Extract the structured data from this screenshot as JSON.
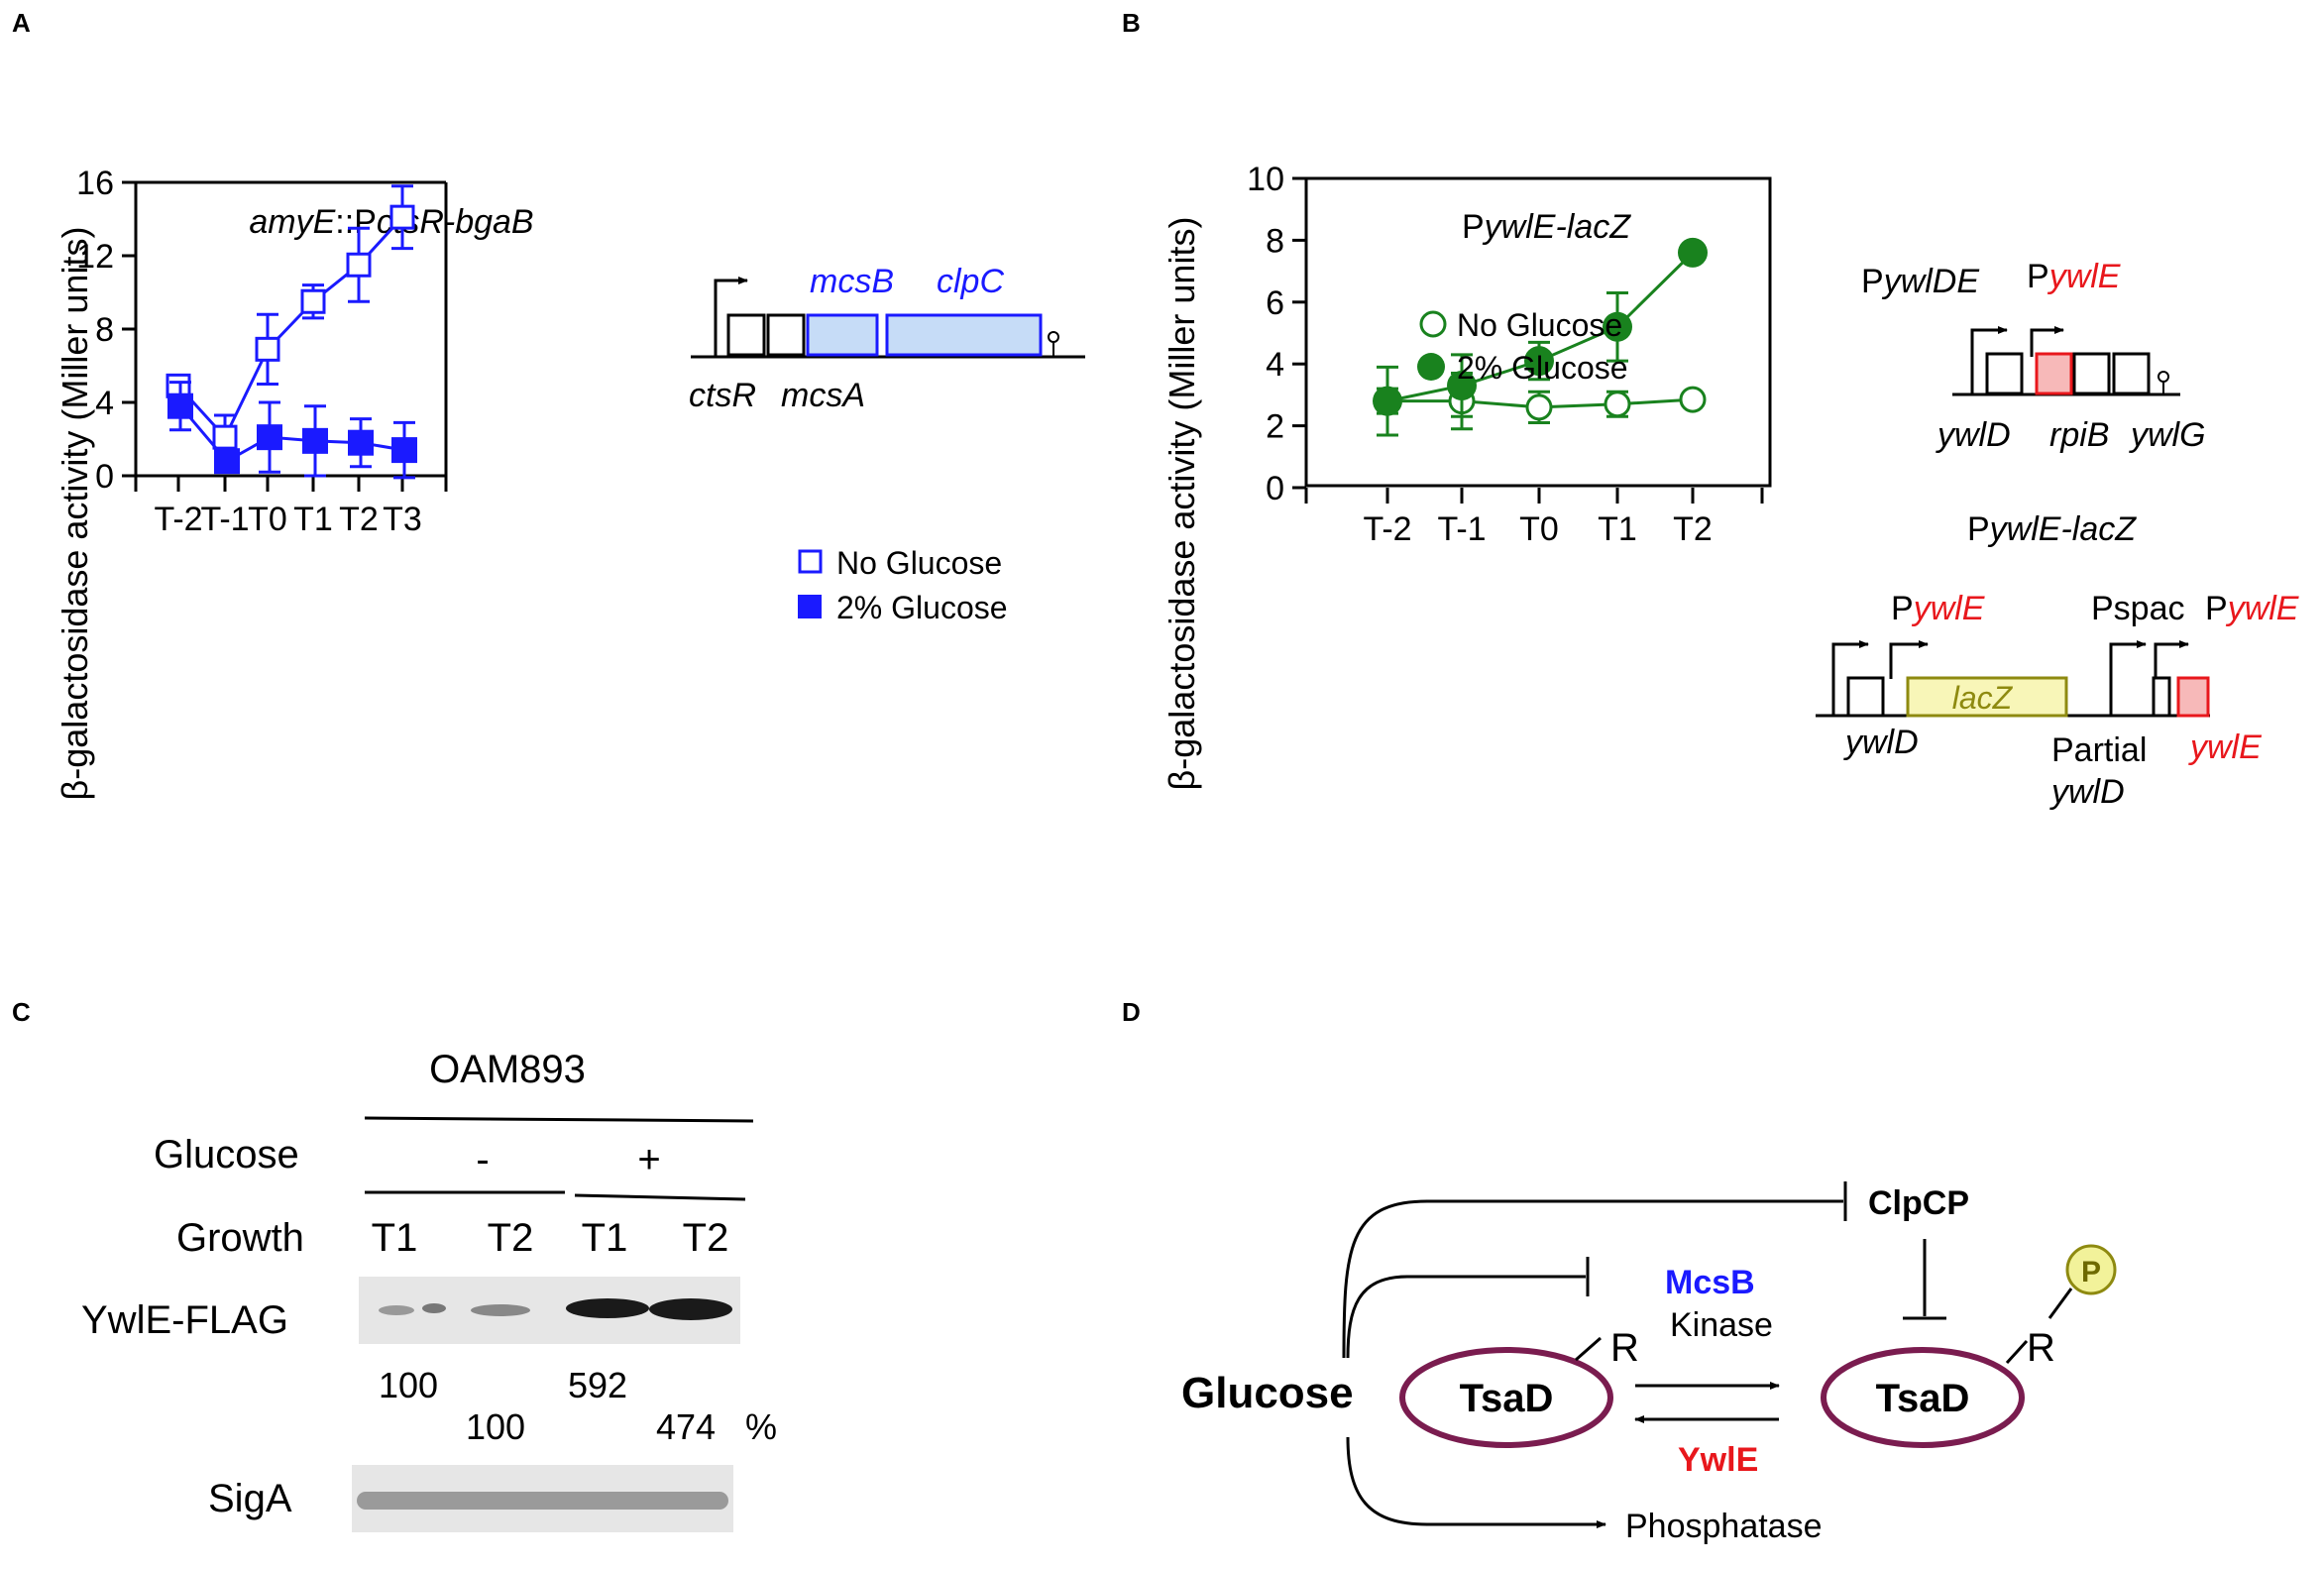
{
  "colors": {
    "blue": "#1a1aff",
    "blue_fill": "#c6dcf7",
    "green": "#19821e",
    "red": "#e8171c",
    "red_fill": "#f7b9b9",
    "olive": "#8e8a10",
    "lacz_fill": "#f8f6b8",
    "purple": "#7a1c4f",
    "p_fill": "#f2f29a",
    "black": "#000000"
  },
  "panels": {
    "A": "A",
    "B": "B",
    "C": "C",
    "D": "D"
  },
  "chart_data": [
    {
      "panel": "A",
      "type": "line",
      "title_italic": "amyE",
      "title_rest": "::P",
      "title_italic2": "ctsR-bgaB",
      "ylabel": "β-galactosidase activity (Miller units)",
      "xlabel": "",
      "categories": [
        "T-2",
        "T-1",
        "T0",
        "T1",
        "T2",
        "T3"
      ],
      "ylim": [
        0,
        16
      ],
      "yticks": [
        0,
        4,
        8,
        12,
        16
      ],
      "series": [
        {
          "name": "No Glucose",
          "marker": "open-square",
          "values": [
            4.9,
            2.1,
            6.9,
            9.5,
            11.5,
            14.1
          ],
          "errors": [
            0.3,
            1.2,
            1.9,
            0.9,
            2.0,
            1.7
          ]
        },
        {
          "name": "2% Glucose",
          "marker": "filled-square",
          "values": [
            3.8,
            0.8,
            2.1,
            1.9,
            1.8,
            1.4
          ],
          "errors": [
            1.3,
            0.5,
            1.9,
            1.9,
            1.3,
            1.5
          ]
        }
      ],
      "legend": [
        "No Glucose",
        "2% Glucose"
      ]
    },
    {
      "panel": "B",
      "type": "line",
      "title_prefix": "P",
      "title_italic": "ywlE-lacZ",
      "ylabel": "β-galactosidase activity (Miller units)",
      "xlabel": "",
      "categories": [
        "T-2",
        "T-1",
        "T0",
        "T1",
        "T2"
      ],
      "ylim": [
        0,
        10
      ],
      "yticks": [
        0,
        2,
        4,
        6,
        8,
        10
      ],
      "series": [
        {
          "name": "No Glucose",
          "marker": "open-circle",
          "values": [
            2.8,
            2.8,
            2.6,
            2.7,
            2.85
          ],
          "errors": [
            0.4,
            0.9,
            0.5,
            0.4,
            0
          ]
        },
        {
          "name": "2% Glucose",
          "marker": "filled-circle",
          "values": [
            2.8,
            3.3,
            4.1,
            5.2,
            7.6
          ],
          "errors": [
            1.1,
            1.0,
            0.6,
            1.1,
            0
          ]
        }
      ],
      "legend": [
        "No Glucose",
        "2% Glucose"
      ]
    }
  ],
  "operonA": {
    "gene1": "mcsB",
    "gene2": "clpC",
    "label1": "ctsR",
    "label2": "mcsA"
  },
  "operonB": {
    "p1_prefix": "P",
    "p1_italic": "ywlDE",
    "p2_prefix": "P",
    "p2_italic": "ywlE",
    "g1": "ywlD",
    "g2": "rpiB",
    "g3": "ywlG",
    "construct_prefix": "P",
    "construct_italic": "ywlE-lacZ",
    "cp1_prefix": "P",
    "cp1_italic": "ywlE",
    "pspac": "Pspac",
    "cp3_prefix": "P",
    "cp3_italic": "ywlE",
    "lacz": "lacZ",
    "cg1": "ywlD",
    "partial1": "Partial",
    "partial2": "ywlD",
    "cg3": "ywlE"
  },
  "western": {
    "strain": "OAM893",
    "glucose_label": "Glucose",
    "minus": "-",
    "plus": "+",
    "growth_label": "Growth",
    "lanes": [
      "T1",
      "T2",
      "T1",
      "T2"
    ],
    "band1_label": "YwlE-FLAG",
    "quant": [
      "100",
      "100",
      "592",
      "474"
    ],
    "percent": "%",
    "band2_label": "SigA"
  },
  "diagram": {
    "glucose": "Glucose",
    "clpcp": "ClpCP",
    "mcsb": "McsB",
    "kinase": "Kinase",
    "tsad1": "TsaD",
    "tsad2": "TsaD",
    "r1": "R",
    "r2": "R",
    "p": "P",
    "ywle": "YwlE",
    "phosphatase": "Phosphatase"
  }
}
